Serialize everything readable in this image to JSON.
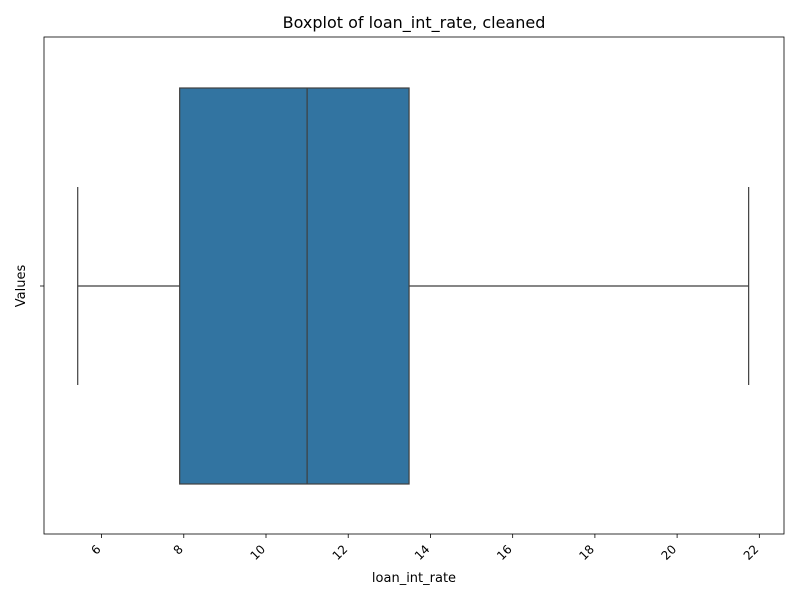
{
  "chart_data": {
    "type": "boxplot",
    "orientation": "horizontal",
    "title": "Boxplot of loan_int_rate, cleaned",
    "xlabel": "loan_int_rate",
    "ylabel": "Values",
    "xlim": [
      4.6,
      22.6
    ],
    "xticks": [
      6,
      8,
      10,
      12,
      14,
      16,
      18,
      20,
      22
    ],
    "xtick_rotation": 45,
    "grid": false,
    "box_color": "#3274a1",
    "line_color": "#3f3f3f",
    "stats": {
      "whisker_low": 5.42,
      "q1": 7.9,
      "median": 11.0,
      "q3": 13.48,
      "whisker_high": 21.74
    }
  }
}
